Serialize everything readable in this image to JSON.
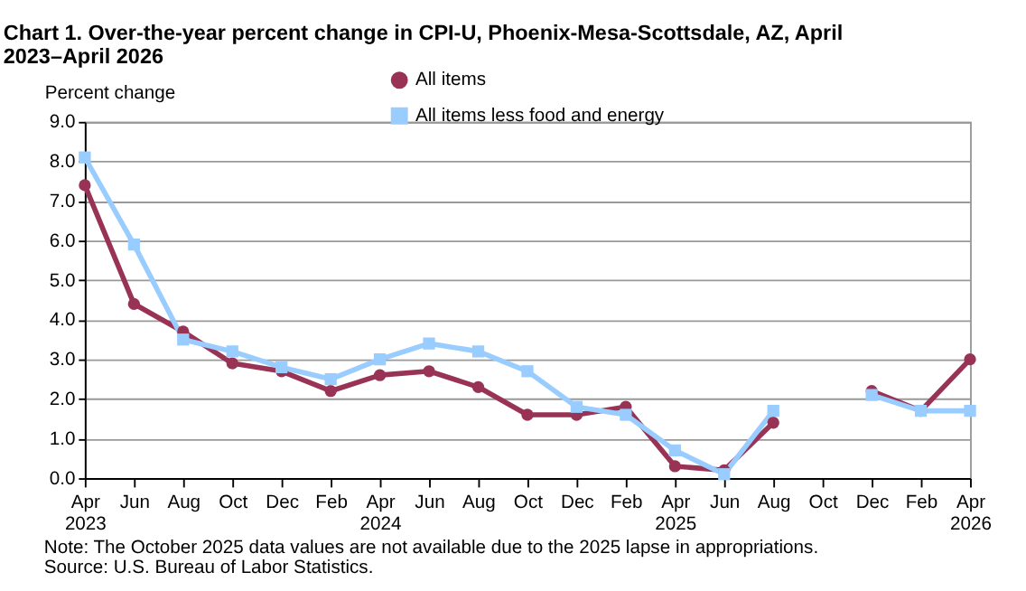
{
  "chart_data": {
    "type": "line",
    "title": "Chart 1. Over-the-year percent change in CPI-U, Phoenix-Mesa-Scottsdale, AZ, April 2023–April 2026",
    "ylabel": "Percent change",
    "categories": [
      "Apr 2023",
      "Jun",
      "Aug",
      "Oct",
      "Dec",
      "Feb",
      "Apr 2024",
      "Jun",
      "Aug",
      "Oct",
      "Dec",
      "Feb",
      "Apr 2025",
      "Jun",
      "Aug",
      "Oct",
      "Dec",
      "Feb",
      "Apr 2026"
    ],
    "series": [
      {
        "name": "All items",
        "color": "#993355",
        "marker": "circle",
        "values": [
          7.4,
          4.4,
          3.7,
          2.9,
          2.7,
          2.2,
          2.6,
          2.7,
          2.3,
          1.6,
          1.6,
          1.8,
          0.3,
          0.2,
          1.4,
          null,
          2.2,
          1.7,
          3.0
        ]
      },
      {
        "name": "All items less food and energy",
        "color": "#99ccff",
        "marker": "square",
        "values": [
          8.1,
          5.9,
          3.5,
          3.2,
          2.8,
          2.5,
          3.0,
          3.4,
          3.2,
          2.7,
          1.8,
          1.6,
          0.7,
          0.1,
          1.7,
          null,
          2.1,
          1.7,
          1.7
        ]
      }
    ],
    "ylim": [
      0,
      9
    ],
    "yticks": [
      {
        "value": 0,
        "label": "0.0"
      },
      {
        "value": 1,
        "label": "1.0"
      },
      {
        "value": 2,
        "label": "2.0"
      },
      {
        "value": 3,
        "label": "3.0"
      },
      {
        "value": 4,
        "label": "4.0"
      },
      {
        "value": 5,
        "label": "5.0"
      },
      {
        "value": 6,
        "label": "6.0"
      },
      {
        "value": 7,
        "label": "7.0"
      },
      {
        "value": 8,
        "label": "8.0"
      },
      {
        "value": 9,
        "label": "9.0"
      }
    ],
    "grid": "y",
    "legend": "top",
    "line_style": "solid",
    "annotations": [
      "Note: The October 2025 data values are not available due to the 2025 lapse in appropriations.",
      "Source: U.S. Bureau of Labor Statistics."
    ]
  }
}
